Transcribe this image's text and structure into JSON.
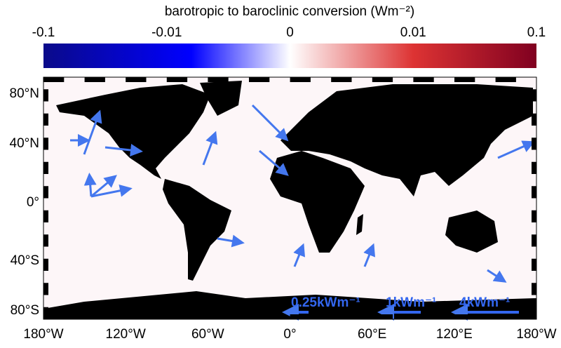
{
  "colorbar": {
    "title": "barotropic to baroclinic conversion (Wm⁻²)",
    "ticks": [
      -0.1,
      -0.01,
      0,
      0.01,
      0.1
    ]
  },
  "map": {
    "lat_labels": [
      "80°N",
      "40°N",
      "0°",
      "40°S",
      "80°S"
    ],
    "lon_labels": [
      "180°W",
      "120°W",
      "60°W",
      "0°",
      "60°E",
      "120°E",
      "180°W"
    ],
    "scale_labels": [
      "0.25kWm⁻¹",
      "1kWm⁻¹",
      "4kWm⁻¹"
    ]
  }
}
